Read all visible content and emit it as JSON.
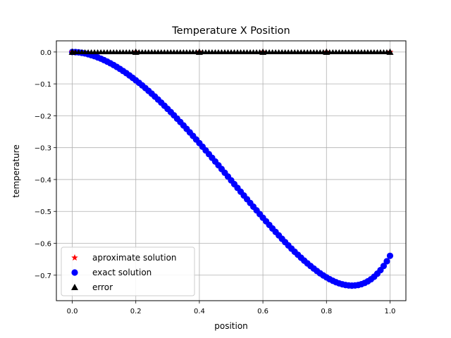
{
  "chart_data": {
    "type": "scatter",
    "title": "Temperature X Position",
    "xlabel": "position",
    "ylabel": "temperature",
    "xlim": [
      -0.05,
      1.05
    ],
    "ylim": [
      -0.78,
      0.035
    ],
    "xticks": [
      0.0,
      0.2,
      0.4,
      0.6,
      0.8,
      1.0
    ],
    "xtick_labels": [
      "0.0",
      "0.2",
      "0.4",
      "0.6",
      "0.8",
      "1.0"
    ],
    "yticks": [
      0.0,
      -0.1,
      -0.2,
      -0.3,
      -0.4,
      -0.5,
      -0.6,
      -0.7
    ],
    "ytick_labels": [
      "0.0",
      "−0.1",
      "−0.2",
      "−0.3",
      "−0.4",
      "−0.5",
      "−0.6",
      "−0.7"
    ],
    "grid": true,
    "legend_position": "lower-left",
    "series": [
      {
        "name": "aproximate solution",
        "marker": "star",
        "color": "#ff0000",
        "x": [
          0.0,
          0.2,
          0.4,
          0.6,
          0.8,
          1.0
        ],
        "y": [
          0.0,
          0.0,
          0.0,
          0.0,
          0.0,
          0.0
        ]
      },
      {
        "name": "exact solution",
        "marker": "circle",
        "color": "#0000ff",
        "x": [
          0.0,
          0.01,
          0.02,
          0.03,
          0.04,
          0.05,
          0.06,
          0.07,
          0.08,
          0.09,
          0.1,
          0.11,
          0.12,
          0.13,
          0.14,
          0.15,
          0.16,
          0.17,
          0.18,
          0.19,
          0.2,
          0.21,
          0.22,
          0.23,
          0.24,
          0.25,
          0.26,
          0.27,
          0.28,
          0.29,
          0.3,
          0.31,
          0.32,
          0.33,
          0.34,
          0.35,
          0.36,
          0.37,
          0.38,
          0.39,
          0.4,
          0.41,
          0.42,
          0.43,
          0.44,
          0.45,
          0.46,
          0.47,
          0.48,
          0.49,
          0.5,
          0.51,
          0.52,
          0.53,
          0.54,
          0.55,
          0.56,
          0.57,
          0.58,
          0.59,
          0.6,
          0.61,
          0.62,
          0.63,
          0.64,
          0.65,
          0.66,
          0.67,
          0.68,
          0.69,
          0.7,
          0.71,
          0.72,
          0.73,
          0.74,
          0.75,
          0.76,
          0.77,
          0.78,
          0.79,
          0.8,
          0.81,
          0.82,
          0.83,
          0.84,
          0.85,
          0.86,
          0.87,
          0.88,
          0.89,
          0.9,
          0.91,
          0.92,
          0.93,
          0.94,
          0.95,
          0.96,
          0.97,
          0.98,
          0.99,
          1.0
        ],
        "y": [
          0.0,
          -0.0003,
          -0.0012,
          -0.0026,
          -0.0046,
          -0.007,
          -0.0099,
          -0.0132,
          -0.0169,
          -0.0209,
          -0.0254,
          -0.0302,
          -0.0354,
          -0.041,
          -0.0468,
          -0.0531,
          -0.0596,
          -0.0664,
          -0.0735,
          -0.0809,
          -0.0886,
          -0.0965,
          -0.1047,
          -0.1131,
          -0.1218,
          -0.1307,
          -0.1398,
          -0.1491,
          -0.1587,
          -0.1684,
          -0.1783,
          -0.1884,
          -0.1986,
          -0.209,
          -0.2196,
          -0.2303,
          -0.2411,
          -0.2521,
          -0.2632,
          -0.2744,
          -0.2857,
          -0.2971,
          -0.3086,
          -0.3202,
          -0.3318,
          -0.3435,
          -0.3552,
          -0.367,
          -0.3789,
          -0.3907,
          -0.4026,
          -0.4145,
          -0.4263,
          -0.4382,
          -0.45,
          -0.4618,
          -0.4735,
          -0.4852,
          -0.4968,
          -0.5083,
          -0.5198,
          -0.5311,
          -0.5424,
          -0.5535,
          -0.5644,
          -0.5752,
          -0.5859,
          -0.5964,
          -0.6066,
          -0.6167,
          -0.6265,
          -0.636,
          -0.6453,
          -0.6543,
          -0.663,
          -0.6713,
          -0.6793,
          -0.6869,
          -0.6941,
          -0.7007,
          -0.7069,
          -0.7125,
          -0.7176,
          -0.722,
          -0.7257,
          -0.7287,
          -0.7309,
          -0.7323,
          -0.7328,
          -0.7323,
          -0.7308,
          -0.7282,
          -0.7244,
          -0.7193,
          -0.7128,
          -0.7049,
          -0.6953,
          -0.6841,
          -0.6711,
          -0.6562,
          -0.6393
        ]
      },
      {
        "name": "error",
        "marker": "triangle-up",
        "color": "#000000",
        "x": [
          0.0,
          0.2,
          0.4,
          0.6,
          0.8,
          1.0
        ],
        "y": [
          0.0,
          0.0,
          0.0,
          0.0,
          0.0,
          0.0
        ]
      }
    ]
  }
}
